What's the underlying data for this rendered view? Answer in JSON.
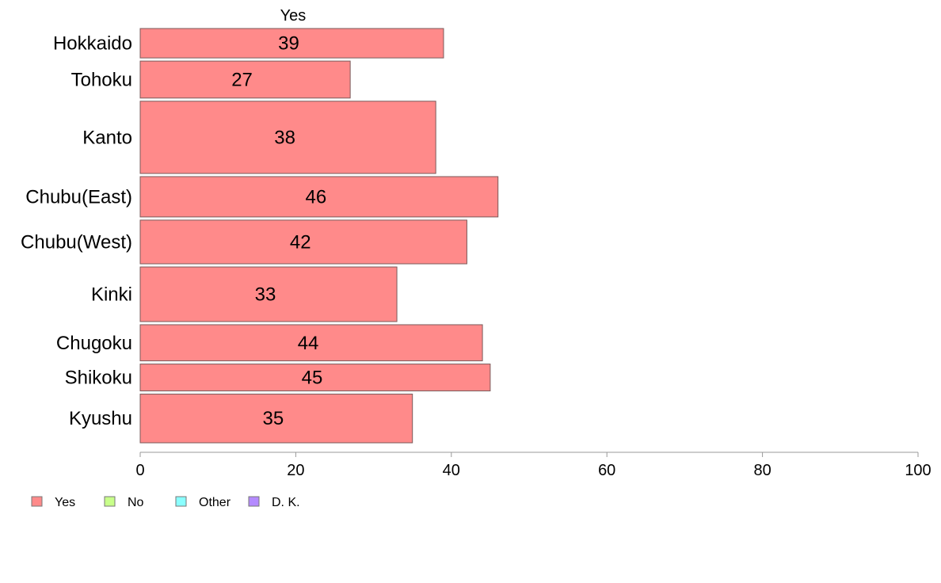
{
  "chart_data": {
    "type": "bar",
    "orientation": "horizontal",
    "stacked": true,
    "variable_width": true,
    "series_title": "Yes",
    "categories": [
      "Hokkaido",
      "Tohoku",
      "Kanto",
      "Chubu(East)",
      "Chubu(West)",
      "Kinki",
      "Chugoku",
      "Shikoku",
      "Kyushu"
    ],
    "series": [
      {
        "name": "Yes",
        "color": "#ff8a8a",
        "values": [
          39,
          27,
          38,
          46,
          42,
          33,
          44,
          45,
          35
        ]
      }
    ],
    "relative_weights": [
      35,
      44,
      86,
      48,
      52,
      65,
      43,
      32,
      58
    ],
    "legend": [
      {
        "label": "Yes",
        "color": "#ff8a8a"
      },
      {
        "label": "No",
        "color": "#c8ff8a"
      },
      {
        "label": "Other",
        "color": "#8affff"
      },
      {
        "label": "D. K.",
        "color": "#b48aff"
      }
    ],
    "xlim": [
      0,
      100
    ],
    "xticks": [
      0,
      20,
      40,
      60,
      80,
      100
    ],
    "grid": false,
    "legend_position": "bottom-left"
  }
}
